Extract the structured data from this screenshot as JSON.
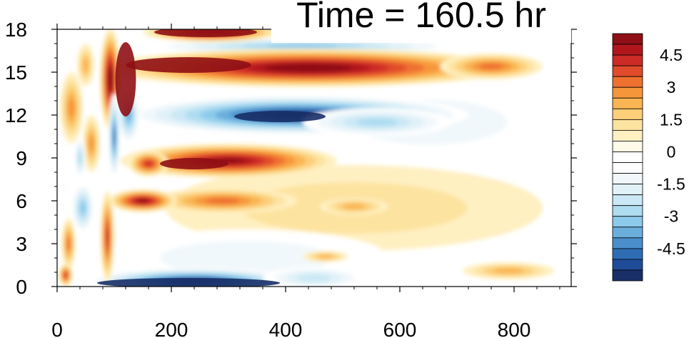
{
  "chart_data": {
    "type": "heatmap",
    "title": "Time = 160.5 hr",
    "xlabel": "",
    "ylabel": "",
    "xlim": [
      0,
      900
    ],
    "ylim": [
      0,
      18
    ],
    "x_ticks": [
      0,
      200,
      400,
      600,
      800
    ],
    "x_tick_labels": [
      "0",
      "200",
      "400",
      "600",
      "800"
    ],
    "y_ticks": [
      0,
      3,
      6,
      9,
      12,
      15,
      18
    ],
    "y_tick_labels": [
      "0",
      "3",
      "6",
      "9",
      "12",
      "15",
      "18"
    ],
    "colorbar": {
      "levels": [
        -5.5,
        -5,
        -4.5,
        -4,
        -3.5,
        -3,
        -2.5,
        -2,
        -1.5,
        -1,
        -0.5,
        0,
        0.5,
        1,
        1.5,
        2,
        2.5,
        3,
        3.5,
        4,
        4.5,
        5,
        5.5
      ],
      "colors": [
        "#182f67",
        "#1f4c98",
        "#2e6db4",
        "#4a8fcb",
        "#6aaedc",
        "#8ccaeb",
        "#aedcf1",
        "#cae8f5",
        "#e0f1f8",
        "#f1f8fb",
        "#ffffff",
        "#ffffff",
        "#fffbe8",
        "#fff0c2",
        "#fde3a0",
        "#fccf78",
        "#f9b553",
        "#f6963a",
        "#ee7130",
        "#e14b2b",
        "#cd2b26",
        "#b2161d",
        "#8e0f15"
      ],
      "tick_values": [
        4.5,
        3,
        1.5,
        0,
        -1.5,
        -3,
        -4.5
      ],
      "tick_labels": [
        "4.5",
        "3",
        "1.5",
        "0",
        "-1.5",
        "-3",
        "-4.5"
      ]
    },
    "features": [
      {
        "name": "upper-positive-band",
        "x_range": [
          90,
          800
        ],
        "y_center": 15.3,
        "peak": 6
      },
      {
        "name": "upper-negative-band",
        "x_range": [
          160,
          700
        ],
        "y_center": 11.9,
        "peak": -5.5
      },
      {
        "name": "mid-positive-band",
        "x_range": [
          160,
          450
        ],
        "y_center": 8.6,
        "peak": 5
      },
      {
        "name": "near-surface-negative-band",
        "x_range": [
          75,
          450
        ],
        "y_center": 0.3,
        "peak": -5.5
      },
      {
        "name": "top-negative-band",
        "x_range": [
          160,
          700
        ],
        "y_center": 16.8,
        "peak": -3.5
      },
      {
        "name": "top-positive-band",
        "x_range": [
          160,
          380
        ],
        "y_center": 17.7,
        "peak": 6
      }
    ]
  }
}
